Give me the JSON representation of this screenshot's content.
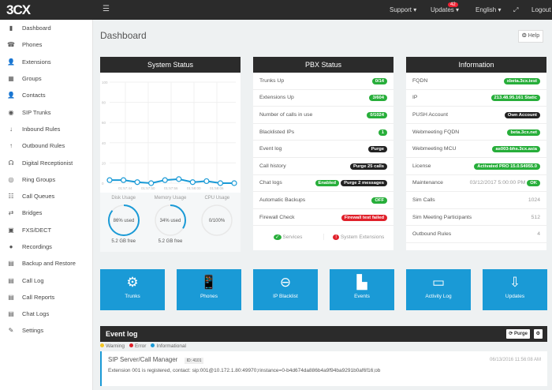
{
  "app": {
    "logo": "3CX"
  },
  "topbar": {
    "menu_icon": "hamburger-icon",
    "support": "Support ▾",
    "updates": "Updates",
    "updates_badge": "42",
    "english": "English ▾",
    "logout": "Logout"
  },
  "sidebar": {
    "items": [
      {
        "label": "Dashboard",
        "icon": "▮"
      },
      {
        "label": "Phones",
        "icon": "☎"
      },
      {
        "label": "Extensions",
        "icon": "👤"
      },
      {
        "label": "Groups",
        "icon": "▦"
      },
      {
        "label": "Contacts",
        "icon": "👤"
      },
      {
        "label": "SIP Trunks",
        "icon": "◉"
      },
      {
        "label": "Inbound Rules",
        "icon": "↓"
      },
      {
        "label": "Outbound Rules",
        "icon": "↑"
      },
      {
        "label": "Digital Receptionist",
        "icon": "☊"
      },
      {
        "label": "Ring Groups",
        "icon": "◎"
      },
      {
        "label": "Call Queues",
        "icon": "☷"
      },
      {
        "label": "Bridges",
        "icon": "⇄"
      },
      {
        "label": "FXS/DECT",
        "icon": "▣"
      },
      {
        "label": "Recordings",
        "icon": "●"
      },
      {
        "label": "Backup and Restore",
        "icon": "▤"
      },
      {
        "label": "Call Log",
        "icon": "▤"
      },
      {
        "label": "Call Reports",
        "icon": "▤"
      },
      {
        "label": "Chat Logs",
        "icon": "▤"
      },
      {
        "label": "Settings",
        "icon": "✎"
      }
    ]
  },
  "page": {
    "title": "Dashboard",
    "help": "Help"
  },
  "system_status": {
    "title": "System Status",
    "chart_data": {
      "type": "line",
      "y_ticks": [
        "100",
        "80",
        "60",
        "40",
        "20",
        "0"
      ],
      "ylim": [
        0,
        100
      ],
      "x_ticks": [
        "01:57:44",
        "01:57:50",
        "01:57:56",
        "01:58:00",
        "01:58:06"
      ],
      "values": [
        3,
        3,
        1,
        0,
        3,
        4,
        1,
        2,
        0,
        0
      ],
      "color": "#1a9ad6"
    },
    "gauges": [
      {
        "label": "Disk Usage",
        "text": "86% used",
        "sub": "5.2 GB free",
        "percent": 86
      },
      {
        "label": "Memory Usage",
        "text": "34% used",
        "sub": "5.2 GB free",
        "percent": 34
      },
      {
        "label": "CPU Usage",
        "text": "0/100%",
        "sub": "",
        "percent": 0
      }
    ]
  },
  "pbx_status": {
    "title": "PBX Status",
    "rows": [
      {
        "label": "Trunks Up",
        "badges": [
          {
            "text": "0/14",
            "style": "green"
          }
        ]
      },
      {
        "label": "Extensions Up",
        "badges": [
          {
            "text": "3/604",
            "style": "green"
          }
        ]
      },
      {
        "label": "Number of calls in use",
        "badges": [
          {
            "text": "0/1024",
            "style": "green"
          }
        ]
      },
      {
        "label": "Blacklisted IPs",
        "badges": [
          {
            "text": "1",
            "style": "green"
          }
        ]
      },
      {
        "label": "Event log",
        "badges": [
          {
            "text": "Purge",
            "style": "dark"
          }
        ]
      },
      {
        "label": "Call history",
        "badges": [
          {
            "text": "Purge 25 calls",
            "style": "dark"
          }
        ]
      },
      {
        "label": "Chat logs",
        "badges": [
          {
            "text": "Enabled",
            "style": "green"
          },
          {
            "text": "Purge 2 messages",
            "style": "dark"
          }
        ]
      },
      {
        "label": "Automatic Backups",
        "badges": [
          {
            "text": "OFF",
            "style": "green"
          }
        ]
      },
      {
        "label": "Firewall Check",
        "badges": [
          {
            "text": "Firewall test failed",
            "style": "red"
          }
        ]
      }
    ],
    "services": "Services",
    "system_extensions": "System Extensions"
  },
  "information": {
    "title": "Information",
    "rows": [
      {
        "label": "FQDN",
        "badge": "xbeta.3cx.test",
        "style": "green"
      },
      {
        "label": "IP",
        "badge": "213.48.95.161 Static",
        "style": "green"
      },
      {
        "label": "PUSH Account",
        "badge": "Own Account",
        "style": "dark"
      },
      {
        "label": "Webmeeting FQDN",
        "badge": "beta.3cx.net",
        "style": "green"
      },
      {
        "label": "Webmeeting MCU",
        "badge": "as003-bhs.3cx.asia",
        "style": "green"
      },
      {
        "label": "License",
        "badge": "Activated PRO 15.0.54955.0",
        "style": "green"
      },
      {
        "label": "Maintenance",
        "value": "03/12/2017 5:00:00 PM",
        "badge": "OK",
        "style": "green"
      },
      {
        "label": "Sim Calls",
        "value": "1024"
      },
      {
        "label": "Sim Meeting Participants",
        "value": "512"
      },
      {
        "label": "Outbound Rules",
        "value": "4"
      }
    ]
  },
  "tiles": [
    {
      "label": "Trunks",
      "icon": "⚙"
    },
    {
      "label": "Phones",
      "icon": "📱"
    },
    {
      "label": "IP Blacklist",
      "icon": "⊖"
    },
    {
      "label": "Events",
      "icon": "▙"
    },
    {
      "label": "Activity Log",
      "icon": "▭"
    },
    {
      "label": "Updates",
      "icon": "⇩"
    }
  ],
  "event_log": {
    "title": "Event log",
    "purge": "Purge",
    "legend": [
      {
        "label": "Warning",
        "color": "#f3c623"
      },
      {
        "label": "Error",
        "color": "#e0202a"
      },
      {
        "label": "Informational",
        "color": "#1a9ad6"
      }
    ],
    "entries": [
      {
        "source": "SIP Server/Call Manager",
        "id": "ID: 4101",
        "time": "06/13/2016 11:56:08 AM",
        "message": "Extension 001 is registered, contact: sip:001@10.172.1.80:49970;rinstance=0-b4d674da886b4a9f94ba9291b0af6f16;ob"
      }
    ]
  }
}
